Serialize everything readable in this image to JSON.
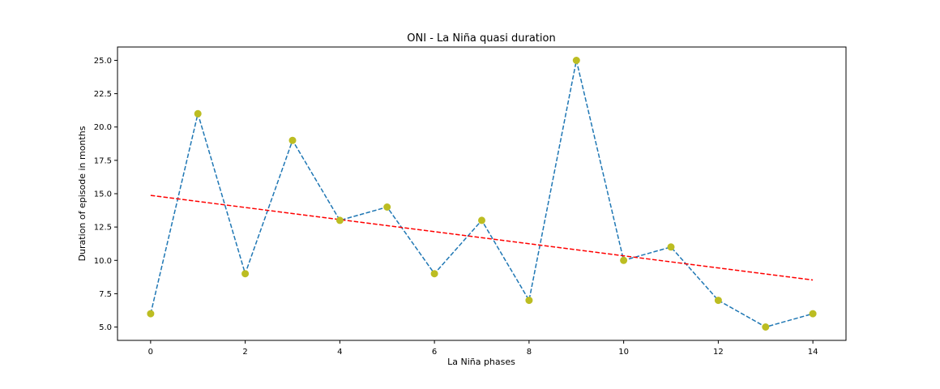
{
  "chart_data": {
    "type": "line",
    "title": "ONI - La Niña quasi duration",
    "xlabel": "La Niña phases",
    "ylabel": "Duration of episode in months",
    "xlim": [
      -0.7,
      14.7
    ],
    "ylim": [
      4.0,
      26.0
    ],
    "xticks": [
      0,
      2,
      4,
      6,
      8,
      10,
      12,
      14
    ],
    "xtick_labels": [
      "0",
      "2",
      "4",
      "6",
      "8",
      "10",
      "12",
      "14"
    ],
    "yticks": [
      5.0,
      7.5,
      10.0,
      12.5,
      15.0,
      17.5,
      20.0,
      22.5,
      25.0
    ],
    "ytick_labels": [
      "5.0",
      "7.5",
      "10.0",
      "12.5",
      "15.0",
      "17.5",
      "20.0",
      "22.5",
      "25.0"
    ],
    "grid": false,
    "series": [
      {
        "x": [
          0,
          1,
          2,
          3,
          4,
          5,
          6,
          7,
          8,
          9,
          10,
          11,
          12,
          13,
          14
        ],
        "values": [
          6,
          21,
          9,
          19,
          13,
          14,
          9,
          13,
          7,
          25,
          10,
          11,
          7,
          5,
          6
        ],
        "line_color": "#1f77b4",
        "line_style": "dashed",
        "marker_color": "#bcbd22",
        "marker": "circle"
      },
      {
        "x": [
          0,
          14
        ],
        "values": [
          14.87,
          8.53
        ],
        "line_color": "#ff0000",
        "line_style": "dashed",
        "marker": "none"
      }
    ]
  }
}
